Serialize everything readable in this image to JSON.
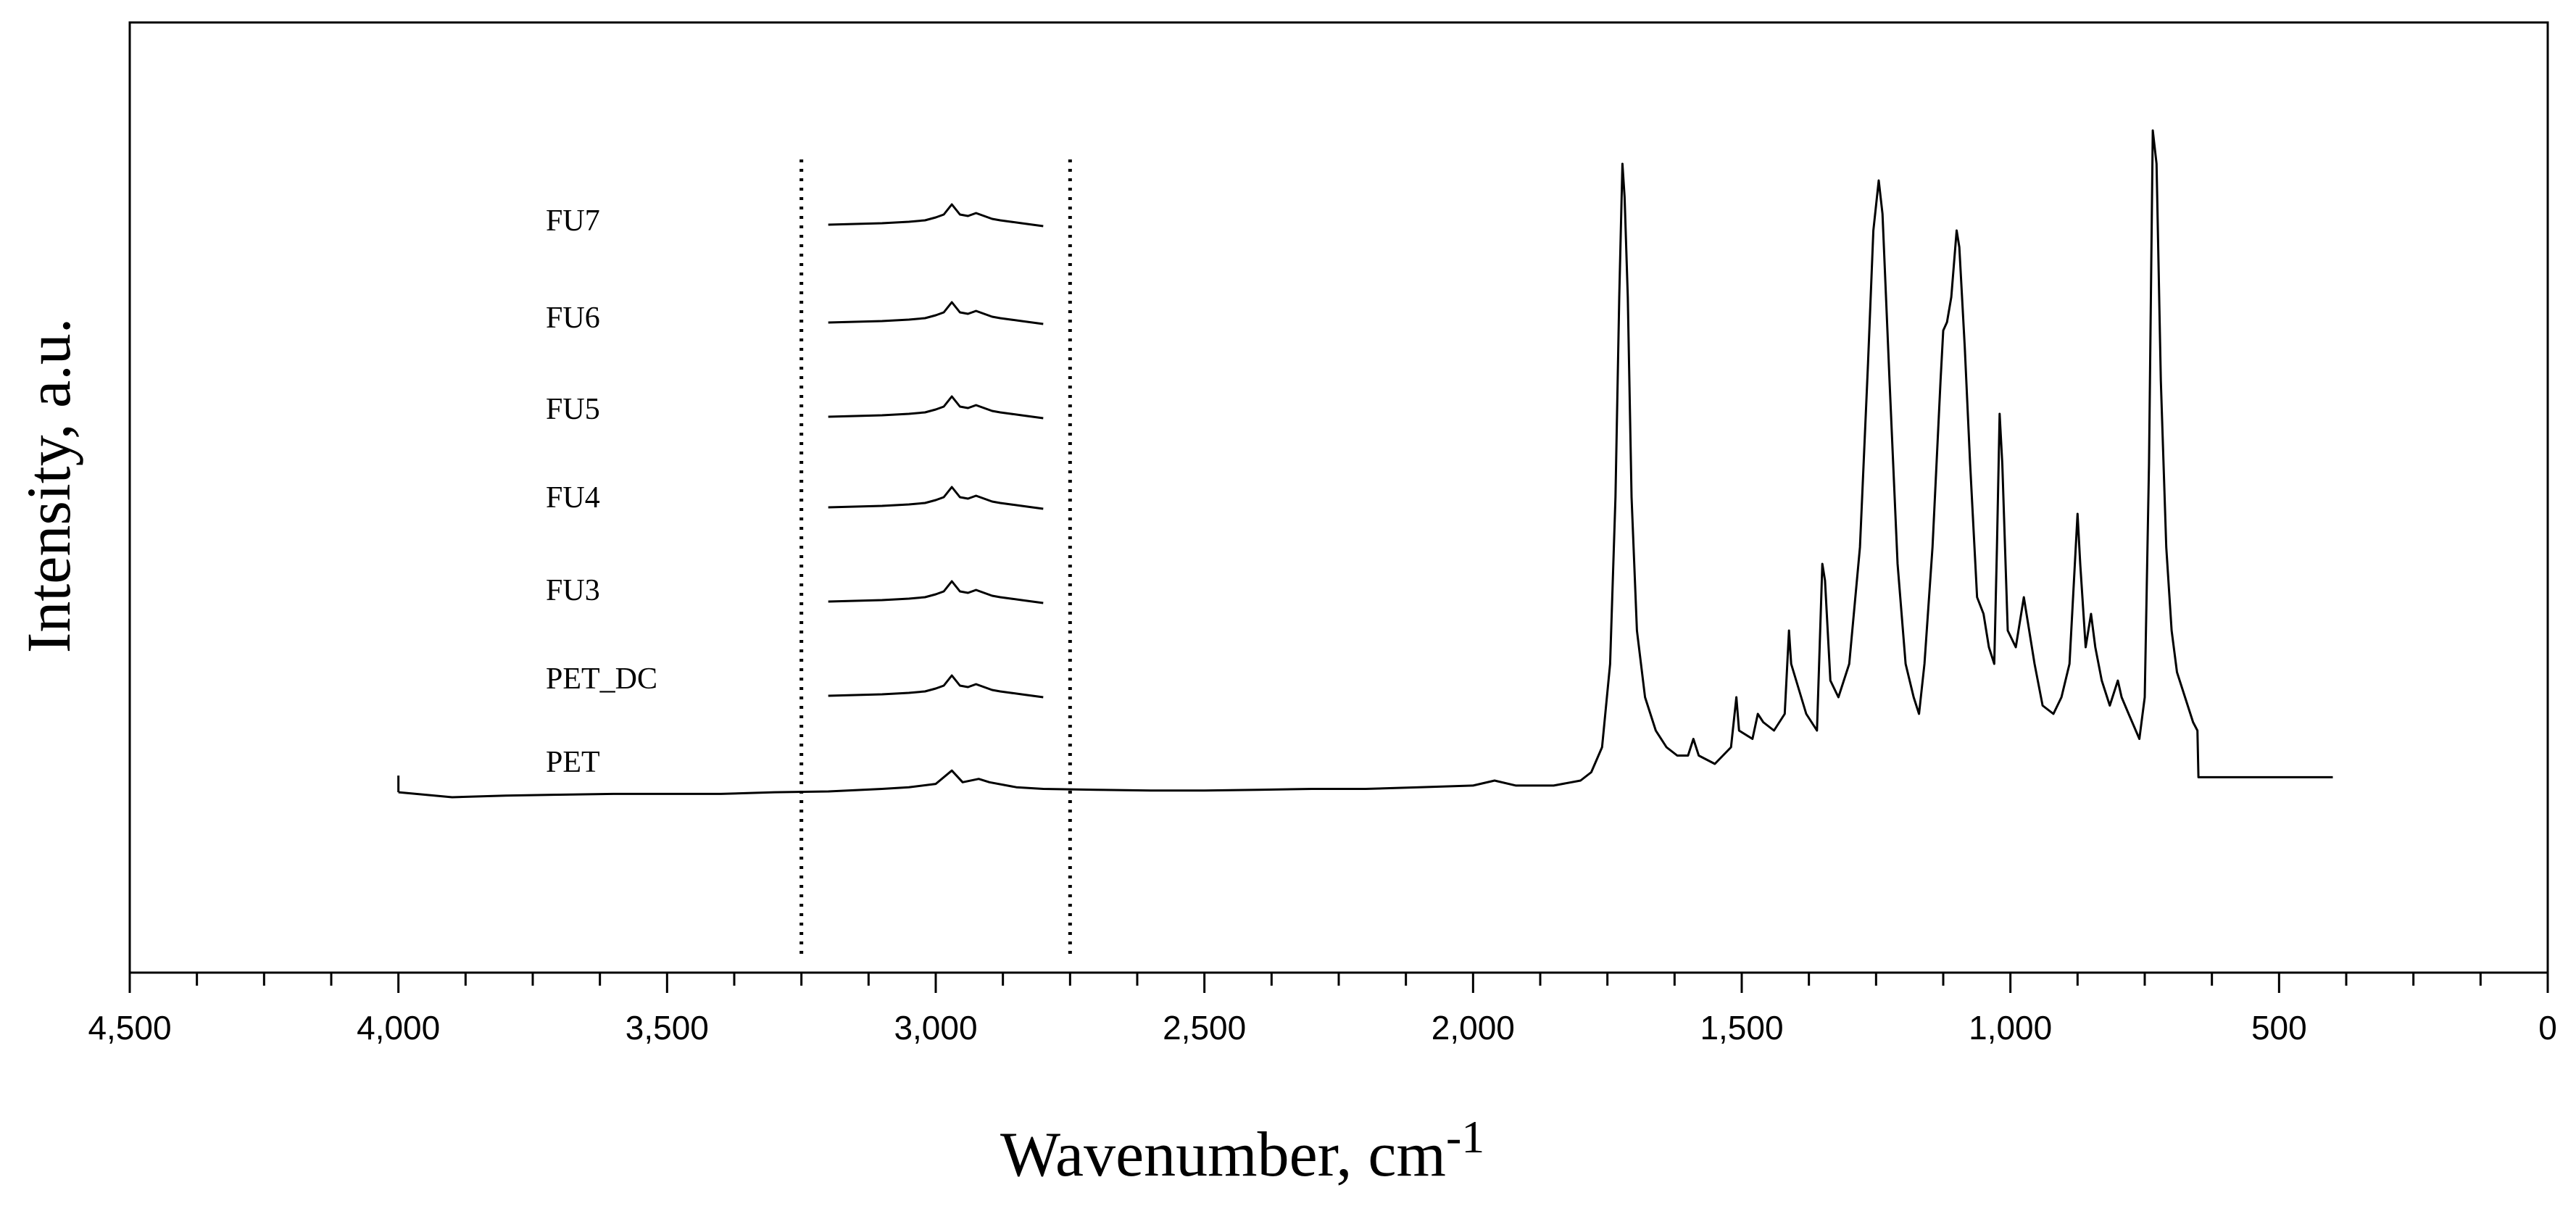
{
  "chart_data": {
    "type": "line",
    "title": "",
    "xlabel": "Wavenumber, cm",
    "xlabel_superscript": "-1",
    "ylabel": "Intensity, a.u.",
    "xlim": [
      4500,
      0
    ],
    "x_reversed": true,
    "y_ticks_shown": false,
    "grid": false,
    "x_ticks": [
      4500,
      4000,
      3500,
      3000,
      2500,
      2000,
      1500,
      1000,
      500,
      0
    ],
    "x_tick_labels": [
      "4,500",
      "4,000",
      "3,500",
      "3,000",
      "2,500",
      "2,000",
      "1,500",
      "1,000",
      "500",
      "0"
    ],
    "dotted_lines_x": [
      3250,
      2750
    ],
    "series": [
      {
        "name": "PET",
        "range": [
          4000,
          400
        ],
        "points": [
          [
            4000,
            0.03
          ],
          [
            3900,
            0.0
          ],
          [
            3800,
            0.01
          ],
          [
            3700,
            0.015
          ],
          [
            3600,
            0.02
          ],
          [
            3500,
            0.02
          ],
          [
            3400,
            0.02
          ],
          [
            3300,
            0.03
          ],
          [
            3200,
            0.035
          ],
          [
            3100,
            0.05
          ],
          [
            3050,
            0.06
          ],
          [
            3000,
            0.08
          ],
          [
            2970,
            0.16
          ],
          [
            2950,
            0.09
          ],
          [
            2920,
            0.11
          ],
          [
            2900,
            0.09
          ],
          [
            2850,
            0.06
          ],
          [
            2800,
            0.05
          ],
          [
            2700,
            0.045
          ],
          [
            2600,
            0.04
          ],
          [
            2500,
            0.04
          ],
          [
            2400,
            0.045
          ],
          [
            2300,
            0.05
          ],
          [
            2200,
            0.05
          ],
          [
            2100,
            0.06
          ],
          [
            2000,
            0.07
          ],
          [
            1960,
            0.1
          ],
          [
            1920,
            0.07
          ],
          [
            1850,
            0.07
          ],
          [
            1800,
            0.1
          ],
          [
            1780,
            0.15
          ],
          [
            1760,
            0.3
          ],
          [
            1745,
            0.8
          ],
          [
            1735,
            1.8
          ],
          [
            1728,
            3.0
          ],
          [
            1722,
            3.8
          ],
          [
            1718,
            3.6
          ],
          [
            1712,
            3.0
          ],
          [
            1705,
            1.8
          ],
          [
            1695,
            1.0
          ],
          [
            1680,
            0.6
          ],
          [
            1660,
            0.4
          ],
          [
            1640,
            0.3
          ],
          [
            1620,
            0.25
          ],
          [
            1600,
            0.25
          ],
          [
            1590,
            0.35
          ],
          [
            1580,
            0.25
          ],
          [
            1550,
            0.2
          ],
          [
            1520,
            0.3
          ],
          [
            1510,
            0.6
          ],
          [
            1505,
            0.4
          ],
          [
            1480,
            0.35
          ],
          [
            1470,
            0.5
          ],
          [
            1460,
            0.45
          ],
          [
            1440,
            0.4
          ],
          [
            1420,
            0.5
          ],
          [
            1412,
            1.0
          ],
          [
            1408,
            0.8
          ],
          [
            1380,
            0.5
          ],
          [
            1360,
            0.4
          ],
          [
            1350,
            1.4
          ],
          [
            1345,
            1.3
          ],
          [
            1335,
            0.7
          ],
          [
            1320,
            0.6
          ],
          [
            1300,
            0.8
          ],
          [
            1280,
            1.5
          ],
          [
            1265,
            2.6
          ],
          [
            1255,
            3.4
          ],
          [
            1245,
            3.7
          ],
          [
            1238,
            3.5
          ],
          [
            1225,
            2.5
          ],
          [
            1210,
            1.4
          ],
          [
            1195,
            0.8
          ],
          [
            1180,
            0.6
          ],
          [
            1170,
            0.5
          ],
          [
            1160,
            0.8
          ],
          [
            1145,
            1.5
          ],
          [
            1130,
            2.5
          ],
          [
            1125,
            2.8
          ],
          [
            1118,
            2.85
          ],
          [
            1110,
            3.0
          ],
          [
            1100,
            3.4
          ],
          [
            1095,
            3.3
          ],
          [
            1085,
            2.7
          ],
          [
            1075,
            2.0
          ],
          [
            1062,
            1.2
          ],
          [
            1050,
            1.1
          ],
          [
            1040,
            0.9
          ],
          [
            1030,
            0.8
          ],
          [
            1025,
            1.5
          ],
          [
            1020,
            2.3
          ],
          [
            1015,
            2.0
          ],
          [
            1005,
            1.0
          ],
          [
            990,
            0.9
          ],
          [
            975,
            1.2
          ],
          [
            970,
            1.1
          ],
          [
            955,
            0.8
          ],
          [
            940,
            0.55
          ],
          [
            920,
            0.5
          ],
          [
            905,
            0.6
          ],
          [
            890,
            0.8
          ],
          [
            875,
            1.7
          ],
          [
            870,
            1.4
          ],
          [
            860,
            0.9
          ],
          [
            850,
            1.1
          ],
          [
            842,
            0.9
          ],
          [
            830,
            0.7
          ],
          [
            815,
            0.55
          ],
          [
            800,
            0.7
          ],
          [
            793,
            0.6
          ],
          [
            780,
            0.5
          ],
          [
            760,
            0.35
          ],
          [
            750,
            0.6
          ],
          [
            742,
            2.0
          ],
          [
            735,
            4.0
          ],
          [
            728,
            3.8
          ],
          [
            720,
            2.5
          ],
          [
            710,
            1.5
          ],
          [
            700,
            1.0
          ],
          [
            690,
            0.75
          ],
          [
            675,
            0.6
          ],
          [
            660,
            0.45
          ],
          [
            652,
            0.4
          ],
          [
            650,
            0.12
          ],
          [
            600,
            0.12
          ],
          [
            500,
            0.12
          ],
          [
            400,
            0.12
          ]
        ]
      },
      {
        "name": "PET_DC",
        "range": [
          3200,
          2800
        ]
      },
      {
        "name": "FU3",
        "range": [
          3200,
          2800
        ]
      },
      {
        "name": "FU4",
        "range": [
          3200,
          2800
        ]
      },
      {
        "name": "FU5",
        "range": [
          3200,
          2800
        ]
      },
      {
        "name": "FU6",
        "range": [
          3200,
          2800
        ]
      },
      {
        "name": "FU7",
        "range": [
          3200,
          2800
        ]
      }
    ],
    "inset_points": [
      [
        3200,
        0.0
      ],
      [
        3150,
        0.005
      ],
      [
        3100,
        0.01
      ],
      [
        3050,
        0.02
      ],
      [
        3020,
        0.03
      ],
      [
        3000,
        0.05
      ],
      [
        2985,
        0.07
      ],
      [
        2970,
        0.14
      ],
      [
        2955,
        0.07
      ],
      [
        2940,
        0.06
      ],
      [
        2925,
        0.08
      ],
      [
        2910,
        0.06
      ],
      [
        2895,
        0.04
      ],
      [
        2880,
        0.03
      ],
      [
        2860,
        0.02
      ],
      [
        2840,
        0.01
      ],
      [
        2820,
        0.0
      ],
      [
        2800,
        -0.01
      ]
    ]
  }
}
